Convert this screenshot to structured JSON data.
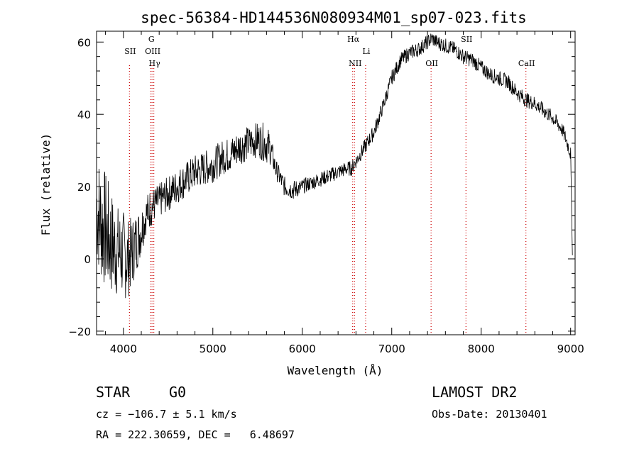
{
  "chart_data": {
    "type": "line",
    "title": "spec-56384-HD144536N080934M01_sp07-023.fits",
    "xlabel": "Wavelength (Å)",
    "ylabel": "Flux (relative)",
    "xlim": [
      3700,
      9050
    ],
    "ylim": [
      -21,
      63
    ],
    "xticks": [
      4000,
      5000,
      6000,
      7000,
      8000,
      9000
    ],
    "yticks": [
      -20,
      0,
      20,
      40,
      60
    ],
    "xtick_labels": [
      "4000",
      "5000",
      "6000",
      "7000",
      "8000",
      "9000"
    ],
    "ytick_labels": [
      "−20",
      "0",
      "20",
      "40",
      "60"
    ],
    "grid": false,
    "line_color": "#000000",
    "marker_color": "#cc0000",
    "spectrum": {
      "x": [
        3700,
        3750,
        3800,
        3850,
        3900,
        3950,
        4000,
        4050,
        4100,
        4150,
        4200,
        4250,
        4300,
        4350,
        4400,
        4450,
        4500,
        4600,
        4700,
        4800,
        4900,
        5000,
        5100,
        5200,
        5300,
        5400,
        5500,
        5600,
        5650,
        5700,
        5800,
        5900,
        6000,
        6100,
        6200,
        6300,
        6400,
        6500,
        6550,
        6600,
        6700,
        6800,
        6900,
        7000,
        7100,
        7200,
        7300,
        7400,
        7450,
        7500,
        7600,
        7700,
        7800,
        7900,
        8000,
        8100,
        8200,
        8300,
        8400,
        8500,
        8600,
        8700,
        8800,
        8900,
        8950,
        9000,
        9020
      ],
      "y": [
        15,
        10,
        8,
        5,
        3,
        2,
        1,
        0,
        2,
        5,
        8,
        12,
        14,
        15,
        16,
        17,
        18,
        20,
        22,
        24,
        25,
        26,
        28,
        29,
        31,
        32,
        33,
        32,
        30,
        25,
        20,
        19,
        20,
        21,
        22,
        23,
        24,
        25,
        25,
        27,
        31,
        35,
        42,
        50,
        55,
        57,
        58,
        60,
        61,
        60,
        59,
        58,
        56,
        55,
        53,
        51,
        50,
        49,
        46,
        44,
        43,
        41,
        39,
        36,
        33,
        29,
        1
      ],
      "noise": [
        12,
        12,
        12,
        11,
        10,
        9,
        9,
        8,
        7,
        6,
        5,
        4,
        4,
        3.5,
        3.5,
        3.5,
        3.5,
        3.5,
        3.5,
        3.5,
        3.5,
        3.5,
        3.5,
        3.5,
        3.5,
        3.5,
        3.5,
        4,
        3,
        2,
        2,
        2,
        1.5,
        1.5,
        1.5,
        1.5,
        1.5,
        1.5,
        1.5,
        1.5,
        1.5,
        1.5,
        1.5,
        1.5,
        1.5,
        1.5,
        1.5,
        1.5,
        1.5,
        1.5,
        1.5,
        1.5,
        1.5,
        1.5,
        1.5,
        1.5,
        1.5,
        1.5,
        1.5,
        1.5,
        1.5,
        1.5,
        1.5,
        1.5,
        1.5,
        1.5,
        0
      ]
    },
    "lines": [
      {
        "x": 4068,
        "label": "SII"
      },
      {
        "x": 4305,
        "label": "G"
      },
      {
        "x": 4320,
        "label": "OIII"
      },
      {
        "x": 4340,
        "label": "Hγ"
      },
      {
        "x": 6563,
        "label": "Hα"
      },
      {
        "x": 6584,
        "label": "NII"
      },
      {
        "x": 6708,
        "label": "Li"
      },
      {
        "x": 7440,
        "label": "OII"
      },
      {
        "x": 7830,
        "label": "SII"
      },
      {
        "x": 8500,
        "label": "CaII"
      }
    ]
  },
  "info": {
    "class": "STAR",
    "subclass": "G0",
    "survey": "LAMOST DR2",
    "cz": "cz = −106.7 ± 5.1 km/s",
    "obs_date": "Obs-Date: 20130401",
    "coords": "RA = 222.30659, DEC =   6.48697"
  }
}
